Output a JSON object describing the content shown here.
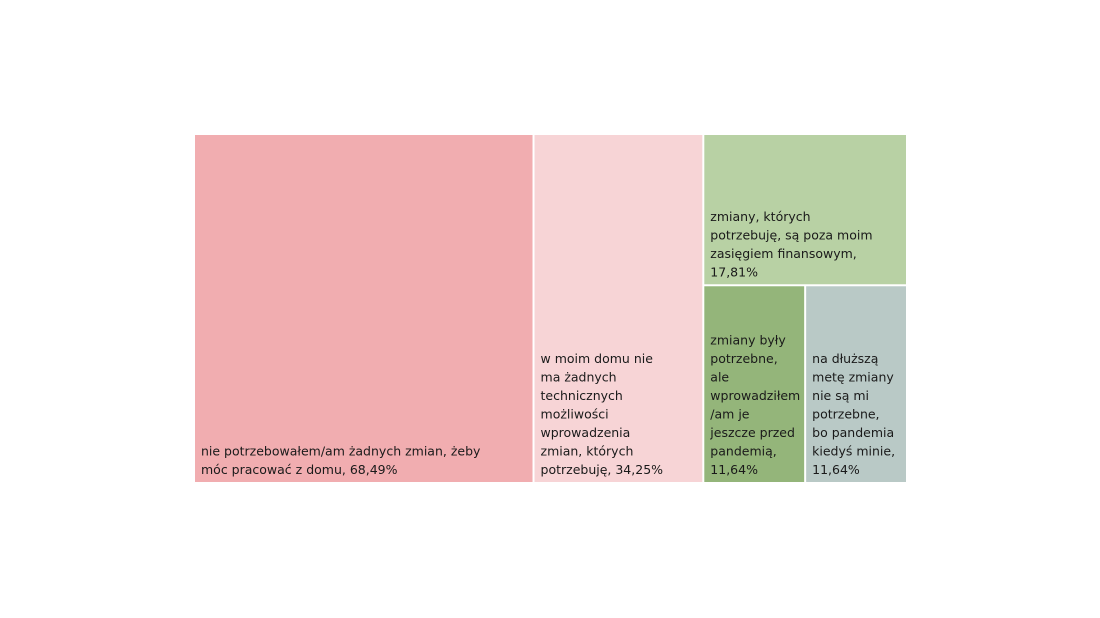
{
  "chart_data": {
    "type": "treemap",
    "title": "",
    "items": [
      {
        "label_lines": [
          "nie potrzebowałem/am żadnych zmian, żeby",
          "móc pracować z domu, 68,49%"
        ],
        "category": "nie potrzebowałem/am żadnych zmian, żeby móc pracować z domu",
        "value": 68.49,
        "color": "#f1adb0"
      },
      {
        "label_lines": [
          "w moim domu nie",
          "ma żadnych",
          "technicznych",
          "możliwości",
          "wprowadzenia",
          "zmian, których",
          "potrzebuję, 34,25%"
        ],
        "category": "w moim domu nie ma żadnych technicznych możliwości wprowadzenia zmian, których potrzebuję",
        "value": 34.25,
        "color": "#f7d4d6"
      },
      {
        "label_lines": [
          "zmiany, których",
          "potrzebuję, są poza moim",
          "zasięgiem finansowym,",
          "17,81%"
        ],
        "category": "zmiany, których potrzebuję, są poza moim zasięgiem finansowym",
        "value": 17.81,
        "color": "#b8d1a4"
      },
      {
        "label_lines": [
          "zmiany były",
          "potrzebne,",
          "ale",
          "wprowadziłem",
          "/am je",
          "jeszcze przed",
          "pandemią,",
          "11,64%"
        ],
        "category": "zmiany były potrzebne, ale wprowadziłem/am je jeszcze przed pandemią",
        "value": 11.64,
        "color": "#94b57a"
      },
      {
        "label_lines": [
          "na dłuższą",
          "metę zmiany",
          "nie są mi",
          "potrzebne,",
          "bo pandemia",
          "kiedyś minie,",
          "11,64%"
        ],
        "category": "na dłuższą metę zmiany nie są mi potrzebne, bo pandemia kiedyś minie",
        "value": 11.64,
        "color": "#b9c9c6"
      }
    ]
  }
}
